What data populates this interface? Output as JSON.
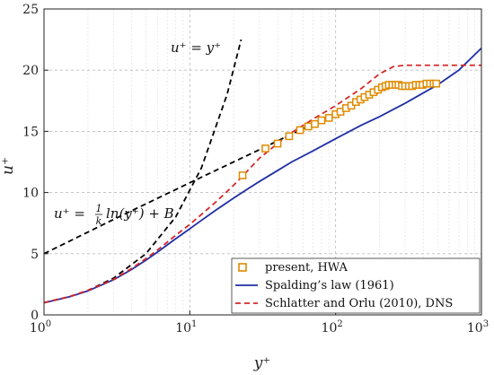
{
  "chart_data": {
    "type": "line",
    "x_scale": "log",
    "xlim": [
      1,
      1000
    ],
    "ylim": [
      0,
      25
    ],
    "xlabel": "y⁺",
    "ylabel": "u⁺",
    "x_ticks": [
      {
        "value": 1,
        "base": "10",
        "exp": "0"
      },
      {
        "value": 10,
        "base": "10",
        "exp": "1"
      },
      {
        "value": 100,
        "base": "10",
        "exp": "2"
      },
      {
        "value": 1000,
        "base": "10",
        "exp": "3"
      }
    ],
    "y_ticks": [
      0,
      5,
      10,
      15,
      20,
      25
    ],
    "grid": true,
    "legend_position": "bottom-right",
    "annotations": {
      "viscous": "u⁺ = y⁺",
      "log_law_lhs": "u⁺ =",
      "log_law_frac_num": "1",
      "log_law_frac_den": "k",
      "log_law_rhs": "ln(y⁺) + B"
    },
    "reference_lines": [
      {
        "label": "viscous sublayer",
        "color": "#000000",
        "x": [
          1,
          1.5,
          2,
          3,
          5,
          8,
          12,
          18,
          22.5
        ],
        "y": [
          1,
          1.5,
          2,
          3,
          5,
          8,
          12,
          18,
          22.5
        ]
      },
      {
        "label": "log law",
        "color": "#000000",
        "x": [
          1,
          3,
          10,
          30,
          100,
          200
        ],
        "y": [
          5.0,
          7.8,
          10.8,
          13.5,
          16.5,
          18.2
        ]
      }
    ],
    "series": [
      {
        "name": "present, HWA",
        "kind": "marker",
        "color": "#E08A00",
        "x": [
          23,
          33,
          40,
          48,
          57,
          65,
          72,
          80,
          90,
          100,
          108,
          118,
          128,
          138,
          148,
          158,
          170,
          182,
          195,
          208,
          220,
          232,
          245,
          258,
          270,
          285,
          300,
          318,
          335,
          355,
          375,
          395,
          420,
          445,
          470,
          490
        ],
        "y": [
          11.4,
          13.6,
          14.0,
          14.6,
          15.1,
          15.4,
          15.6,
          15.9,
          16.1,
          16.4,
          16.6,
          16.9,
          17.1,
          17.4,
          17.6,
          17.8,
          18.0,
          18.2,
          18.4,
          18.6,
          18.7,
          18.8,
          18.8,
          18.8,
          18.8,
          18.7,
          18.7,
          18.7,
          18.7,
          18.8,
          18.8,
          18.8,
          18.9,
          18.9,
          18.9,
          18.9
        ]
      },
      {
        "name": "Spalding’s law (1961)",
        "kind": "line",
        "color": "#1F2FA5",
        "x": [
          1,
          1.5,
          2,
          3,
          4,
          5,
          6,
          8,
          10,
          12,
          15,
          20,
          25,
          30,
          40,
          50,
          70,
          100,
          150,
          200,
          300,
          500,
          700,
          1000
        ],
        "y": [
          0.99,
          1.48,
          1.96,
          2.87,
          3.72,
          4.47,
          5.13,
          6.22,
          7.04,
          7.72,
          8.54,
          9.55,
          10.3,
          10.9,
          11.8,
          12.5,
          13.4,
          14.4,
          15.5,
          16.2,
          17.3,
          18.8,
          20.0,
          21.8
        ]
      },
      {
        "name": "Schlatter and Orlu (2010), DNS",
        "kind": "line",
        "color": "#D62728",
        "x": [
          1,
          1.5,
          2,
          3,
          4,
          5,
          6,
          8,
          10,
          12,
          15,
          20,
          25,
          30,
          40,
          50,
          70,
          100,
          150,
          200,
          250,
          300,
          500,
          1000
        ],
        "y": [
          1.0,
          1.5,
          2.0,
          2.9,
          3.8,
          4.6,
          5.3,
          6.5,
          7.4,
          8.2,
          9.2,
          10.6,
          11.8,
          12.8,
          14.0,
          14.9,
          16.0,
          17.1,
          18.5,
          19.7,
          20.3,
          20.4,
          20.4,
          20.4
        ]
      }
    ]
  }
}
